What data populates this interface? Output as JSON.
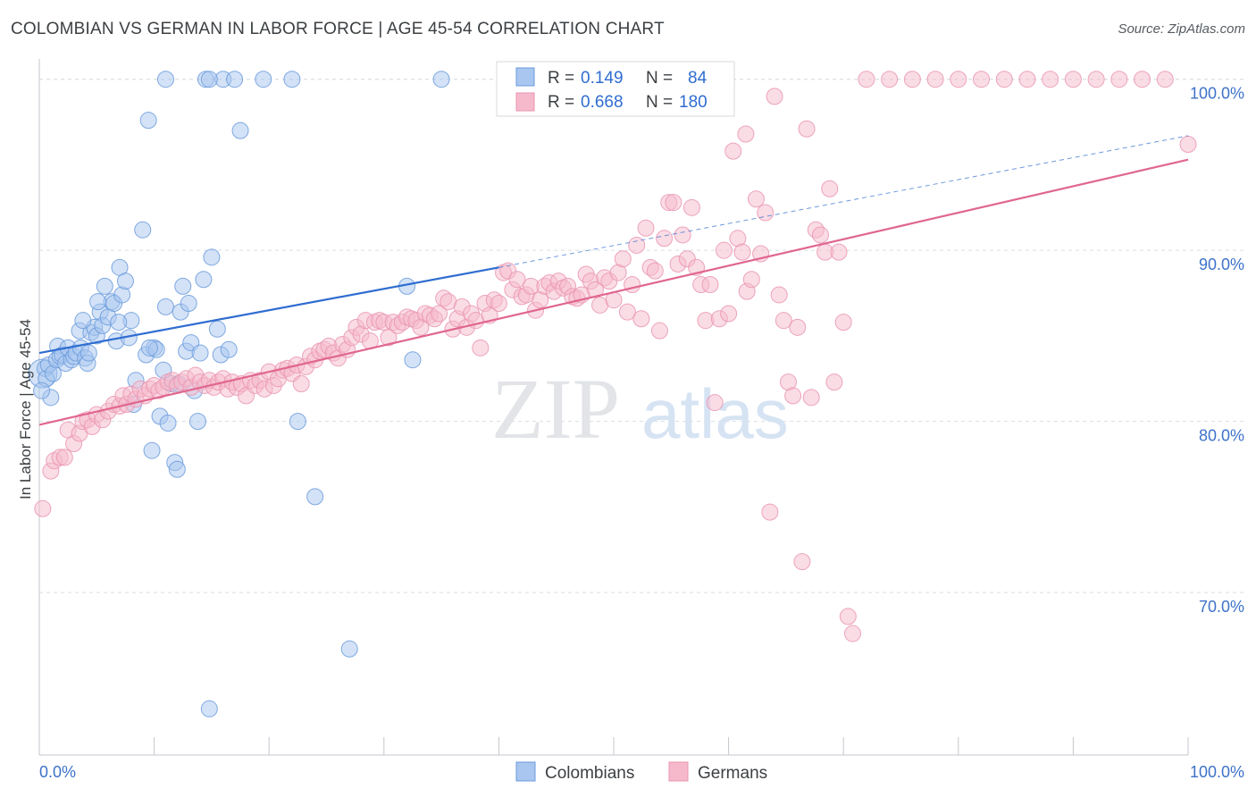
{
  "title": "COLOMBIAN VS GERMAN IN LABOR FORCE | AGE 45-54 CORRELATION CHART",
  "source": "Source: ZipAtlas.com",
  "watermark": {
    "zip": "ZIP",
    "atlas": "atlas"
  },
  "colors": {
    "colombians_fill": "#a8c6ef",
    "colombians_stroke": "#6b9bdc",
    "colombians_line": "#2f6dd0",
    "germans_fill": "#f6b9cc",
    "germans_stroke": "#e995b1",
    "germans_line": "#e0668f",
    "tick_color": "#3d72c8",
    "grid": "#d9dde2"
  },
  "legend": {
    "rows": [
      {
        "r_label": "R =",
        "r_value": "0.149",
        "n_label": "N =",
        "n_value": "84"
      },
      {
        "r_label": "R =",
        "r_value": "0.668",
        "n_label": "N =",
        "n_value": "180"
      }
    ]
  },
  "chart_data": {
    "type": "scatter",
    "title": "COLOMBIAN VS GERMAN IN LABOR FORCE | AGE 45-54 CORRELATION CHART",
    "xlabel": "",
    "ylabel": "In Labor Force | Age 45-54",
    "xlim": [
      0,
      100
    ],
    "ylim": [
      60.5,
      101.5
    ],
    "x_tick_labels": [
      "0.0%",
      "100.0%"
    ],
    "y_ticks": [
      70,
      80,
      90,
      100
    ],
    "y_tick_labels": [
      "70.0%",
      "80.0%",
      "90.0%",
      "100.0%"
    ],
    "grid": true,
    "legend_position": "top-center",
    "series": [
      {
        "name": "Colombians",
        "r": 0.149,
        "n": 84,
        "trend": {
          "x": [
            0,
            40
          ],
          "y": [
            84.0,
            89.0
          ]
        },
        "trend_dashed_extension": {
          "x": [
            40,
            100
          ],
          "y": [
            89.0,
            96.7
          ]
        },
        "points": [
          [
            0.3,
            82.8
          ],
          [
            0.5,
            83.1
          ],
          [
            0.6,
            82.5
          ],
          [
            0.8,
            83.3
          ],
          [
            1.0,
            81.4
          ],
          [
            1.2,
            82.8
          ],
          [
            1.5,
            83.6
          ],
          [
            1.6,
            84.4
          ],
          [
            1.8,
            83.8
          ],
          [
            2.0,
            83.9
          ],
          [
            2.3,
            83.4
          ],
          [
            2.5,
            84.3
          ],
          [
            2.8,
            83.6
          ],
          [
            3.0,
            83.8
          ],
          [
            3.2,
            84.0
          ],
          [
            3.5,
            85.3
          ],
          [
            3.6,
            84.3
          ],
          [
            4.0,
            83.7
          ],
          [
            4.2,
            83.4
          ],
          [
            4.5,
            85.2
          ],
          [
            4.8,
            85.5
          ],
          [
            5.0,
            85.0
          ],
          [
            5.3,
            86.4
          ],
          [
            5.5,
            85.6
          ],
          [
            5.7,
            87.9
          ],
          [
            6.0,
            86.1
          ],
          [
            6.3,
            87.0
          ],
          [
            6.5,
            86.9
          ],
          [
            6.7,
            84.7
          ],
          [
            7.0,
            89.0
          ],
          [
            7.2,
            87.4
          ],
          [
            7.5,
            88.2
          ],
          [
            7.8,
            84.9
          ],
          [
            8.0,
            85.9
          ],
          [
            8.2,
            81.0
          ],
          [
            8.4,
            82.4
          ],
          [
            9.0,
            91.2
          ],
          [
            9.3,
            83.9
          ],
          [
            9.5,
            97.6
          ],
          [
            9.8,
            78.3
          ],
          [
            10.0,
            84.3
          ],
          [
            10.2,
            84.2
          ],
          [
            10.5,
            80.3
          ],
          [
            10.8,
            83.0
          ],
          [
            11.0,
            86.7
          ],
          [
            11.2,
            79.9
          ],
          [
            11.5,
            82.2
          ],
          [
            11.8,
            77.6
          ],
          [
            12.0,
            77.2
          ],
          [
            12.3,
            86.4
          ],
          [
            12.5,
            87.9
          ],
          [
            12.8,
            84.1
          ],
          [
            13.0,
            86.9
          ],
          [
            13.2,
            84.6
          ],
          [
            13.5,
            81.8
          ],
          [
            13.8,
            80.0
          ],
          [
            14.0,
            84.0
          ],
          [
            14.3,
            88.3
          ],
          [
            15.0,
            89.6
          ],
          [
            15.5,
            85.4
          ],
          [
            15.8,
            83.9
          ],
          [
            16.0,
            100.0
          ],
          [
            16.5,
            84.2
          ],
          [
            17.0,
            100.0
          ],
          [
            17.5,
            97.0
          ],
          [
            11.0,
            100.0
          ],
          [
            14.5,
            100.0
          ],
          [
            14.8,
            100.0
          ],
          [
            19.5,
            100.0
          ],
          [
            22.0,
            100.0
          ],
          [
            22.5,
            80.0
          ],
          [
            24.0,
            75.6
          ],
          [
            27.0,
            66.7
          ],
          [
            32.0,
            87.9
          ],
          [
            32.5,
            83.6
          ],
          [
            35.0,
            100.0
          ],
          [
            14.8,
            63.2
          ],
          [
            0.2,
            81.8
          ],
          [
            3.8,
            85.9
          ],
          [
            5.1,
            87.0
          ],
          [
            6.9,
            85.8
          ],
          [
            9.6,
            84.3
          ],
          [
            12.1,
            82.2
          ],
          [
            4.3,
            84.0
          ]
        ]
      },
      {
        "name": "Germans",
        "r": 0.668,
        "n": 180,
        "trend": {
          "x": [
            0,
            100
          ],
          "y": [
            79.8,
            95.3
          ]
        },
        "points": [
          [
            0.3,
            74.9
          ],
          [
            1.0,
            77.1
          ],
          [
            1.3,
            77.7
          ],
          [
            1.8,
            77.9
          ],
          [
            2.2,
            77.9
          ],
          [
            2.5,
            79.5
          ],
          [
            3.0,
            78.7
          ],
          [
            3.5,
            79.3
          ],
          [
            3.8,
            80.0
          ],
          [
            4.2,
            80.1
          ],
          [
            4.6,
            79.7
          ],
          [
            5.0,
            80.4
          ],
          [
            5.5,
            80.1
          ],
          [
            6.0,
            80.6
          ],
          [
            6.5,
            81.0
          ],
          [
            7.0,
            80.9
          ],
          [
            7.3,
            81.5
          ],
          [
            7.6,
            81.0
          ],
          [
            8.0,
            81.6
          ],
          [
            8.4,
            81.3
          ],
          [
            8.8,
            81.9
          ],
          [
            9.2,
            81.5
          ],
          [
            9.6,
            81.9
          ],
          [
            10.0,
            82.1
          ],
          [
            10.4,
            81.8
          ],
          [
            10.8,
            82.0
          ],
          [
            11.2,
            82.3
          ],
          [
            11.6,
            82.4
          ],
          [
            12.0,
            82.1
          ],
          [
            12.4,
            82.3
          ],
          [
            12.8,
            82.5
          ],
          [
            13.2,
            82.0
          ],
          [
            13.6,
            82.7
          ],
          [
            14.0,
            82.3
          ],
          [
            14.4,
            82.1
          ],
          [
            14.8,
            82.4
          ],
          [
            15.2,
            82.0
          ],
          [
            15.6,
            82.3
          ],
          [
            16.0,
            82.5
          ],
          [
            16.4,
            81.9
          ],
          [
            16.8,
            82.3
          ],
          [
            17.2,
            82.0
          ],
          [
            17.6,
            82.2
          ],
          [
            18.0,
            81.5
          ],
          [
            18.4,
            82.4
          ],
          [
            18.8,
            82.1
          ],
          [
            19.2,
            82.4
          ],
          [
            19.6,
            81.9
          ],
          [
            20.0,
            82.9
          ],
          [
            20.4,
            82.1
          ],
          [
            20.8,
            82.5
          ],
          [
            21.2,
            83.0
          ],
          [
            21.6,
            83.1
          ],
          [
            22.0,
            82.8
          ],
          [
            22.4,
            83.3
          ],
          [
            22.8,
            82.2
          ],
          [
            23.2,
            83.2
          ],
          [
            23.6,
            83.8
          ],
          [
            24.0,
            83.6
          ],
          [
            24.4,
            84.1
          ],
          [
            24.8,
            84.2
          ],
          [
            25.2,
            84.4
          ],
          [
            25.6,
            84.0
          ],
          [
            26.0,
            83.7
          ],
          [
            26.4,
            84.5
          ],
          [
            26.8,
            84.2
          ],
          [
            27.2,
            84.9
          ],
          [
            27.6,
            85.5
          ],
          [
            28.0,
            85.1
          ],
          [
            28.4,
            85.9
          ],
          [
            28.8,
            84.7
          ],
          [
            29.2,
            85.8
          ],
          [
            29.6,
            85.9
          ],
          [
            30.0,
            85.8
          ],
          [
            30.4,
            84.9
          ],
          [
            30.8,
            85.8
          ],
          [
            31.2,
            85.6
          ],
          [
            31.6,
            85.8
          ],
          [
            32.0,
            86.1
          ],
          [
            32.4,
            86.0
          ],
          [
            32.8,
            85.9
          ],
          [
            33.2,
            85.5
          ],
          [
            33.6,
            86.3
          ],
          [
            34.0,
            86.2
          ],
          [
            34.4,
            86.0
          ],
          [
            34.8,
            86.3
          ],
          [
            35.2,
            87.2
          ],
          [
            35.6,
            87.0
          ],
          [
            36.0,
            85.4
          ],
          [
            36.4,
            86.0
          ],
          [
            36.8,
            86.7
          ],
          [
            37.2,
            85.5
          ],
          [
            37.6,
            86.3
          ],
          [
            38.0,
            85.9
          ],
          [
            38.4,
            84.3
          ],
          [
            38.8,
            86.9
          ],
          [
            39.2,
            86.2
          ],
          [
            39.6,
            87.1
          ],
          [
            40.0,
            86.9
          ],
          [
            40.4,
            88.7
          ],
          [
            40.8,
            88.8
          ],
          [
            41.2,
            87.7
          ],
          [
            41.6,
            88.3
          ],
          [
            42.0,
            87.3
          ],
          [
            42.4,
            87.4
          ],
          [
            42.8,
            87.9
          ],
          [
            43.2,
            86.5
          ],
          [
            43.6,
            87.1
          ],
          [
            44.0,
            87.9
          ],
          [
            44.4,
            88.1
          ],
          [
            44.8,
            87.6
          ],
          [
            45.2,
            88.2
          ],
          [
            45.6,
            87.8
          ],
          [
            46.0,
            87.9
          ],
          [
            46.4,
            87.3
          ],
          [
            46.8,
            87.2
          ],
          [
            47.2,
            87.4
          ],
          [
            47.6,
            88.6
          ],
          [
            48.0,
            88.2
          ],
          [
            48.4,
            87.7
          ],
          [
            48.8,
            86.8
          ],
          [
            49.2,
            88.4
          ],
          [
            49.6,
            88.2
          ],
          [
            50.0,
            87.1
          ],
          [
            50.4,
            88.7
          ],
          [
            50.8,
            89.5
          ],
          [
            51.2,
            86.4
          ],
          [
            51.6,
            88.0
          ],
          [
            52.0,
            90.3
          ],
          [
            52.4,
            86.0
          ],
          [
            52.8,
            91.3
          ],
          [
            53.2,
            89.0
          ],
          [
            53.6,
            88.8
          ],
          [
            54.0,
            85.3
          ],
          [
            54.4,
            90.7
          ],
          [
            54.8,
            92.8
          ],
          [
            55.2,
            92.8
          ],
          [
            55.6,
            89.2
          ],
          [
            56.0,
            90.9
          ],
          [
            56.4,
            89.5
          ],
          [
            56.8,
            92.5
          ],
          [
            57.2,
            89.0
          ],
          [
            57.6,
            88.0
          ],
          [
            58.0,
            85.9
          ],
          [
            58.4,
            88.0
          ],
          [
            58.8,
            81.1
          ],
          [
            59.2,
            86.0
          ],
          [
            59.6,
            90.0
          ],
          [
            60.0,
            86.3
          ],
          [
            60.4,
            95.8
          ],
          [
            60.8,
            90.7
          ],
          [
            61.2,
            89.9
          ],
          [
            61.6,
            87.6
          ],
          [
            62.0,
            88.3
          ],
          [
            62.4,
            93.0
          ],
          [
            62.8,
            89.8
          ],
          [
            63.2,
            92.2
          ],
          [
            63.6,
            74.7
          ],
          [
            64.0,
            99.0
          ],
          [
            64.4,
            87.4
          ],
          [
            64.8,
            85.9
          ],
          [
            65.2,
            82.3
          ],
          [
            65.6,
            81.5
          ],
          [
            66.0,
            85.5
          ],
          [
            66.4,
            71.8
          ],
          [
            66.8,
            97.1
          ],
          [
            67.2,
            81.4
          ],
          [
            67.6,
            91.2
          ],
          [
            68.0,
            90.9
          ],
          [
            68.4,
            89.9
          ],
          [
            68.8,
            93.6
          ],
          [
            69.2,
            82.3
          ],
          [
            69.6,
            89.9
          ],
          [
            70.0,
            85.8
          ],
          [
            70.4,
            68.6
          ],
          [
            70.8,
            67.6
          ],
          [
            72.0,
            100.0
          ],
          [
            74.0,
            100.0
          ],
          [
            76.0,
            100.0
          ],
          [
            78.0,
            100.0
          ],
          [
            80.0,
            100.0
          ],
          [
            82.0,
            100.0
          ],
          [
            84.0,
            100.0
          ],
          [
            86.0,
            100.0
          ],
          [
            88.0,
            100.0
          ],
          [
            90.0,
            100.0
          ],
          [
            92.0,
            100.0
          ],
          [
            94.0,
            100.0
          ],
          [
            96.0,
            100.0
          ],
          [
            98.0,
            100.0
          ],
          [
            100.0,
            96.2
          ],
          [
            61.5,
            96.8
          ]
        ]
      }
    ]
  },
  "bottom_legend": {
    "items": [
      {
        "label": "Colombians"
      },
      {
        "label": "Germans"
      }
    ]
  }
}
